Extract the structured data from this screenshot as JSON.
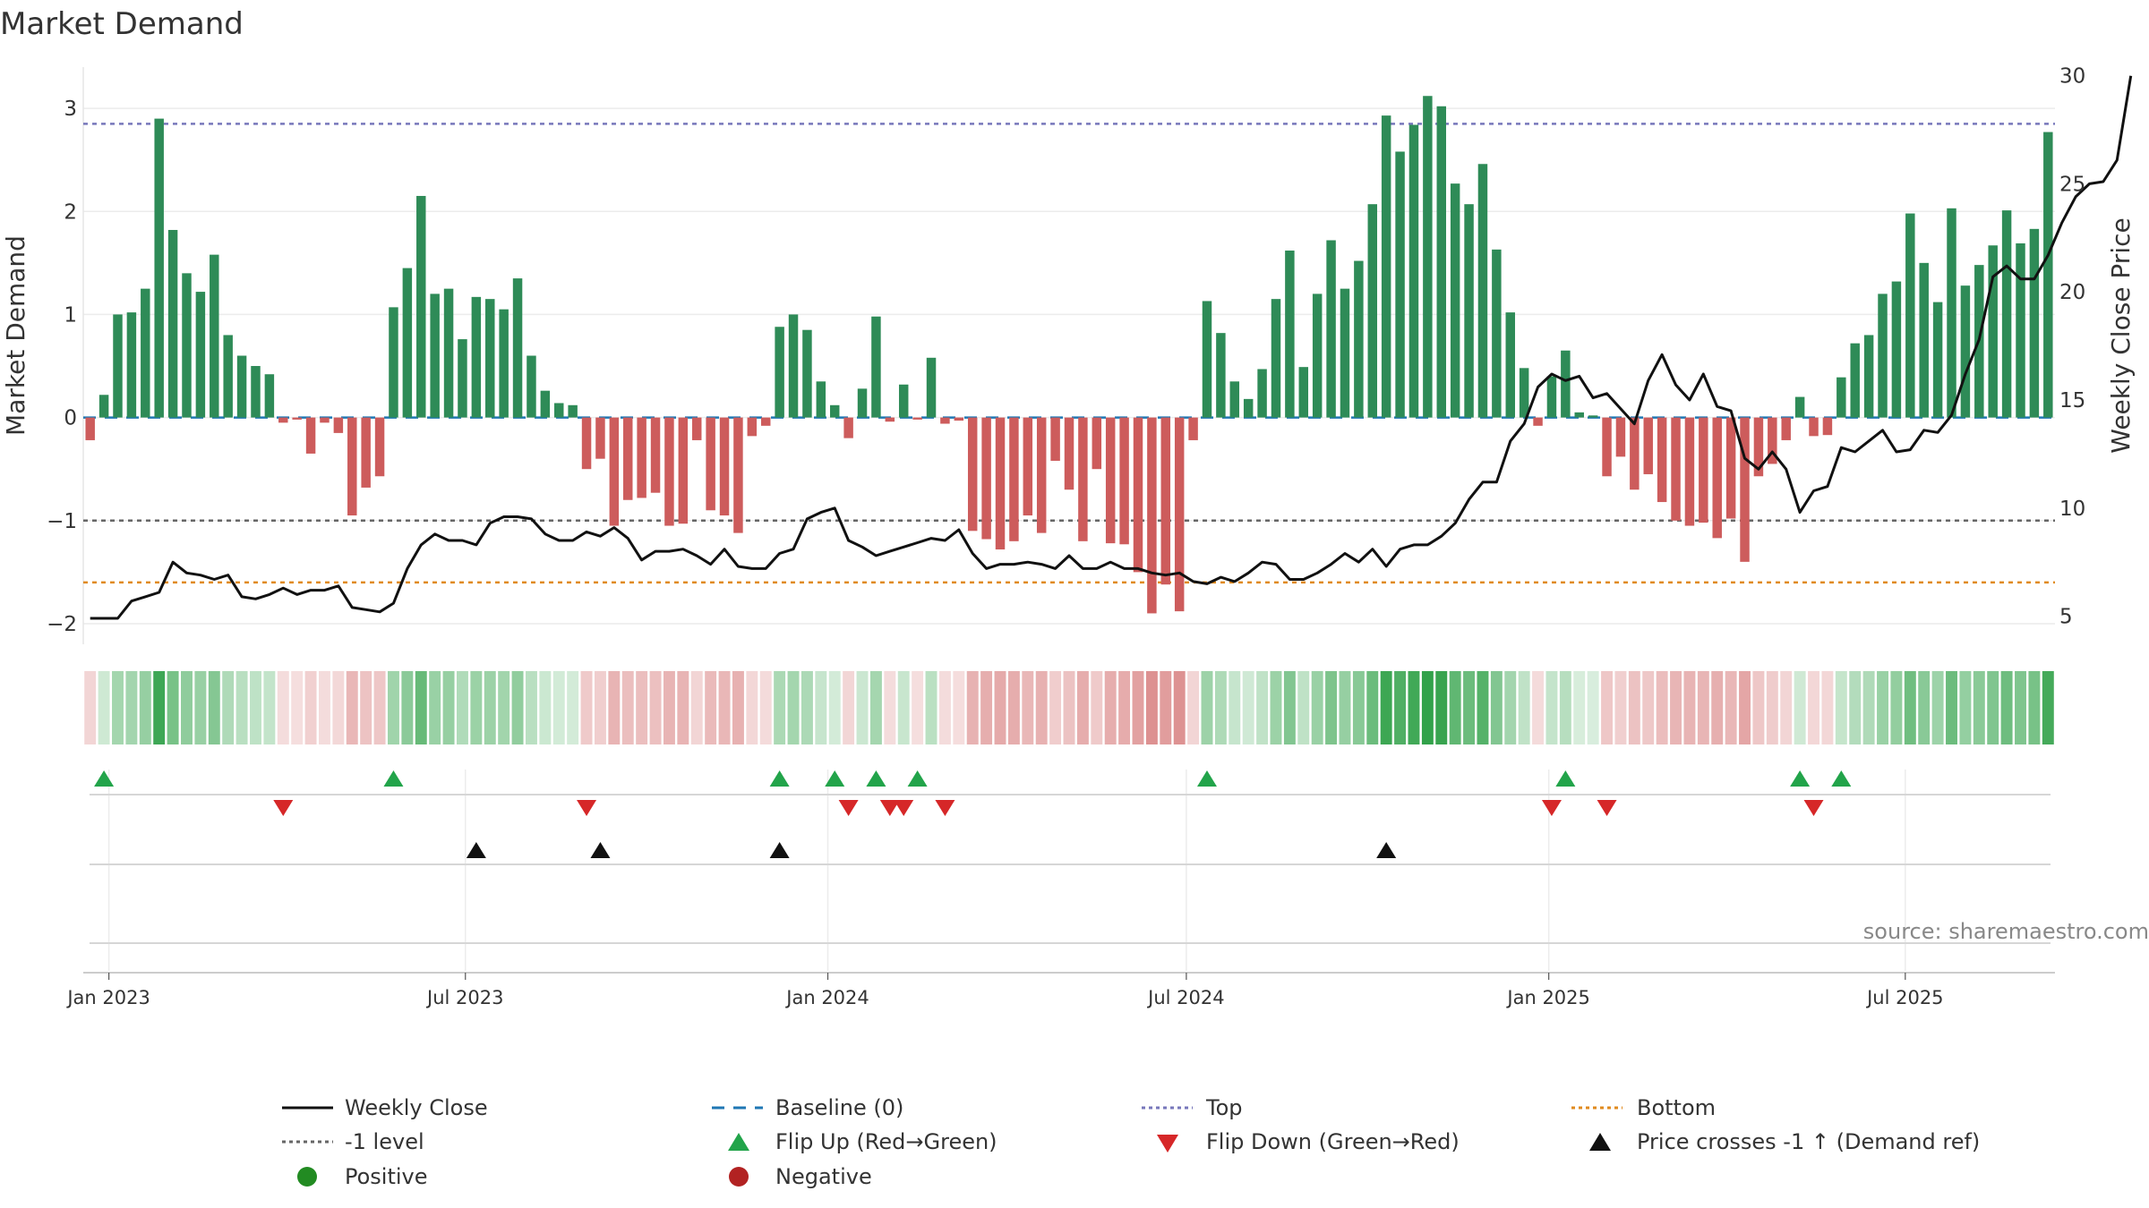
{
  "chart_data": {
    "type": "bar+line",
    "title": "Market Demand",
    "ylabel": "Market Demand",
    "y2label": "Weekly Close Price",
    "ylim": [
      -2.2,
      3.4
    ],
    "y2lim": [
      3.7,
      30.4
    ],
    "yticks": [
      -2,
      -1,
      0,
      1,
      2,
      3
    ],
    "y2ticks": [
      5,
      10,
      15,
      20,
      25,
      30
    ],
    "xticks": [
      "Jan 2023",
      "Jul 2023",
      "Jan 2024",
      "Jul 2024",
      "Jan 2025",
      "Jul 2025"
    ],
    "start_week": "2022-12-19",
    "levels": {
      "top": 2.85,
      "minus_one": -1.0,
      "bottom": -1.6,
      "baseline": 0
    },
    "colors": {
      "positive": "#2e8b57",
      "negative": "#cd5c5c",
      "price": "#111111",
      "top": "#7777bb",
      "minus_one": "#666666",
      "bottom": "#e08a1e",
      "baseline": "#1f77b4",
      "flip_up": "#22a44a",
      "flip_down": "#d62728",
      "cross": "#111111",
      "source": "#888888"
    },
    "demand": [
      -0.22,
      0.22,
      1.0,
      1.02,
      1.25,
      2.9,
      1.82,
      1.4,
      1.22,
      1.58,
      0.8,
      0.6,
      0.5,
      0.42,
      -0.05,
      -0.02,
      -0.35,
      -0.05,
      -0.15,
      -0.95,
      -0.68,
      -0.57,
      1.07,
      1.45,
      2.15,
      1.2,
      1.25,
      0.76,
      1.17,
      1.15,
      1.05,
      1.35,
      0.6,
      0.26,
      0.14,
      0.12,
      -0.5,
      -0.4,
      -1.05,
      -0.8,
      -0.78,
      -0.73,
      -1.05,
      -1.03,
      -0.22,
      -0.9,
      -0.95,
      -1.12,
      -0.18,
      -0.08,
      0.88,
      1.0,
      0.85,
      0.35,
      0.12,
      -0.2,
      0.28,
      0.98,
      -0.04,
      0.32,
      -0.02,
      0.58,
      -0.06,
      -0.03,
      -1.1,
      -1.18,
      -1.28,
      -1.2,
      -0.95,
      -1.12,
      -0.42,
      -0.7,
      -1.2,
      -0.5,
      -1.22,
      -1.23,
      -1.5,
      -1.9,
      -1.62,
      -1.88,
      -0.22,
      1.13,
      0.82,
      0.35,
      0.18,
      0.47,
      1.15,
      1.62,
      0.49,
      1.2,
      1.72,
      1.25,
      1.52,
      2.07,
      2.93,
      2.58,
      2.84,
      3.12,
      3.02,
      2.27,
      2.07,
      2.46,
      1.63,
      1.02,
      0.48,
      -0.08,
      0.4,
      0.65,
      0.05,
      0.02,
      -0.57,
      -0.38,
      -0.7,
      -0.55,
      -0.82,
      -1.0,
      -1.05,
      -1.02,
      -1.17,
      -0.98,
      -1.4,
      -0.57,
      -0.45,
      -0.22,
      0.2,
      -0.18,
      -0.17,
      0.39,
      0.72,
      0.8,
      1.2,
      1.32,
      1.98,
      1.5,
      1.12,
      2.03,
      1.28,
      1.48,
      1.67,
      2.01,
      1.69,
      1.83,
      2.77
    ],
    "price": [
      4.9,
      4.9,
      4.9,
      5.7,
      5.9,
      6.1,
      7.5,
      7.0,
      6.9,
      6.7,
      6.9,
      5.9,
      5.8,
      6.0,
      6.3,
      6.0,
      6.2,
      6.2,
      6.4,
      5.4,
      5.3,
      5.2,
      5.6,
      7.2,
      8.3,
      8.8,
      8.5,
      8.5,
      8.3,
      9.3,
      9.6,
      9.6,
      9.5,
      8.8,
      8.5,
      8.5,
      8.9,
      8.7,
      9.1,
      8.6,
      7.6,
      8.0,
      8.0,
      8.1,
      7.8,
      7.4,
      8.1,
      7.3,
      7.2,
      7.2,
      7.9,
      8.1,
      9.5,
      9.8,
      10.0,
      8.5,
      8.2,
      7.8,
      8.0,
      8.2,
      8.4,
      8.6,
      8.5,
      9.0,
      7.9,
      7.2,
      7.4,
      7.4,
      7.5,
      7.4,
      7.2,
      7.8,
      7.2,
      7.2,
      7.5,
      7.2,
      7.2,
      7.0,
      6.9,
      7.0,
      6.6,
      6.5,
      6.8,
      6.6,
      7.0,
      7.5,
      7.4,
      6.7,
      6.7,
      7.0,
      7.4,
      7.9,
      7.5,
      8.1,
      7.3,
      8.1,
      8.3,
      8.3,
      8.7,
      9.3,
      10.4,
      11.2,
      11.2,
      13.1,
      13.9,
      15.6,
      16.2,
      15.9,
      16.1,
      15.1,
      15.3,
      14.6,
      13.9,
      15.9,
      17.1,
      15.7,
      15.0,
      16.2,
      14.7,
      14.5,
      12.3,
      11.8,
      12.6,
      11.8,
      9.8,
      10.8,
      11.0,
      12.8,
      12.6,
      13.1,
      13.6,
      12.6,
      12.7,
      13.6,
      13.5,
      14.3,
      16.2,
      17.8,
      20.7,
      21.2,
      20.6,
      20.6,
      21.7,
      23.2,
      24.4,
      25.0,
      25.1,
      26.1,
      30.0
    ],
    "flip_up_weeks": [
      1,
      22,
      50,
      54,
      57,
      60,
      81,
      107,
      124,
      127
    ],
    "flip_down_weeks": [
      14,
      36,
      55,
      58,
      59,
      62,
      106,
      110,
      125
    ],
    "cross_weeks": [
      28,
      37,
      50,
      94
    ],
    "series": [
      {
        "name": "Weekly Close"
      },
      {
        "name": "Baseline (0)"
      },
      {
        "name": "Top"
      },
      {
        "name": "Bottom"
      },
      {
        "name": "-1 level"
      },
      {
        "name": "Flip Up (Red→Green)"
      },
      {
        "name": "Flip Down (Green→Red)"
      },
      {
        "name": "Price crosses -1 ↑ (Demand ref)"
      },
      {
        "name": "Positive"
      },
      {
        "name": "Negative"
      }
    ]
  },
  "source_text": "source: sharemaestro.com"
}
